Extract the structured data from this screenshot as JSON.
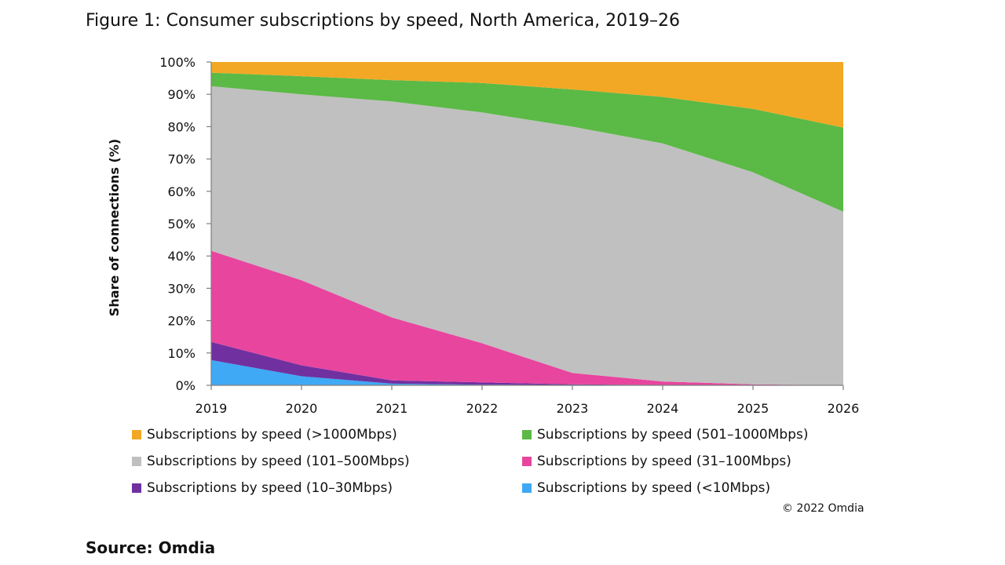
{
  "figure_title": "Figure 1: Consumer subscriptions by speed, North America, 2019–26",
  "copyright": "© 2022 Omdia",
  "source": "Source: Omdia",
  "chart_data": {
    "type": "area",
    "stacked": true,
    "title": "Figure 1: Consumer subscriptions by speed, North America, 2019–26",
    "xlabel": "",
    "ylabel": "Share of connections (%)",
    "ylim": [
      0,
      100
    ],
    "yticks": [
      0,
      10,
      20,
      30,
      40,
      50,
      60,
      70,
      80,
      90,
      100
    ],
    "ytick_labels": [
      "0%",
      "10%",
      "20%",
      "30%",
      "40%",
      "50%",
      "60%",
      "70%",
      "80%",
      "90%",
      "100%"
    ],
    "categories": [
      "2019",
      "2020",
      "2021",
      "2022",
      "2023",
      "2024",
      "2025",
      "2026"
    ],
    "grid": false,
    "legend_position": "bottom",
    "series": [
      {
        "name": "Subscriptions by speed (<10Mbps)",
        "color": "#3FA9F5",
        "values": [
          7.8,
          2.8,
          0.5,
          0.2,
          0.1,
          0.0,
          0.0,
          0.0
        ]
      },
      {
        "name": "Subscriptions by speed (10–30Mbps)",
        "color": "#7030A0",
        "values": [
          5.6,
          3.4,
          1.0,
          0.7,
          0.2,
          0.1,
          0.0,
          0.0
        ]
      },
      {
        "name": "Subscriptions by speed (31–100Mbps)",
        "color": "#E8459F",
        "values": [
          28.2,
          26.3,
          19.5,
          12.1,
          3.5,
          1.1,
          0.3,
          0.0
        ]
      },
      {
        "name": "Subscriptions by speed (101–500Mbps)",
        "color": "#C0C0C0",
        "values": [
          50.9,
          57.5,
          66.8,
          71.4,
          76.2,
          73.6,
          65.6,
          53.7
        ]
      },
      {
        "name": "Subscriptions by speed (501–1000Mbps)",
        "color": "#5BB946",
        "values": [
          4.2,
          5.6,
          6.6,
          9.1,
          11.5,
          14.4,
          19.6,
          26.0
        ]
      },
      {
        "name": "Subscriptions by speed (>1000Mbps)",
        "color": "#F2A824",
        "values": [
          3.3,
          4.4,
          5.6,
          6.5,
          8.5,
          10.8,
          14.5,
          20.3
        ]
      }
    ]
  },
  "legend_items": [
    {
      "label": "Subscriptions by speed (>1000Mbps)",
      "color": "#F2A824"
    },
    {
      "label": "Subscriptions by speed (501–1000Mbps)",
      "color": "#5BB946"
    },
    {
      "label": "Subscriptions by speed (101–500Mbps)",
      "color": "#C0C0C0"
    },
    {
      "label": "Subscriptions by speed (31–100Mbps)",
      "color": "#E8459F"
    },
    {
      "label": "Subscriptions by speed (10–30Mbps)",
      "color": "#7030A0"
    },
    {
      "label": "Subscriptions by speed (<10Mbps)",
      "color": "#3FA9F5"
    }
  ]
}
